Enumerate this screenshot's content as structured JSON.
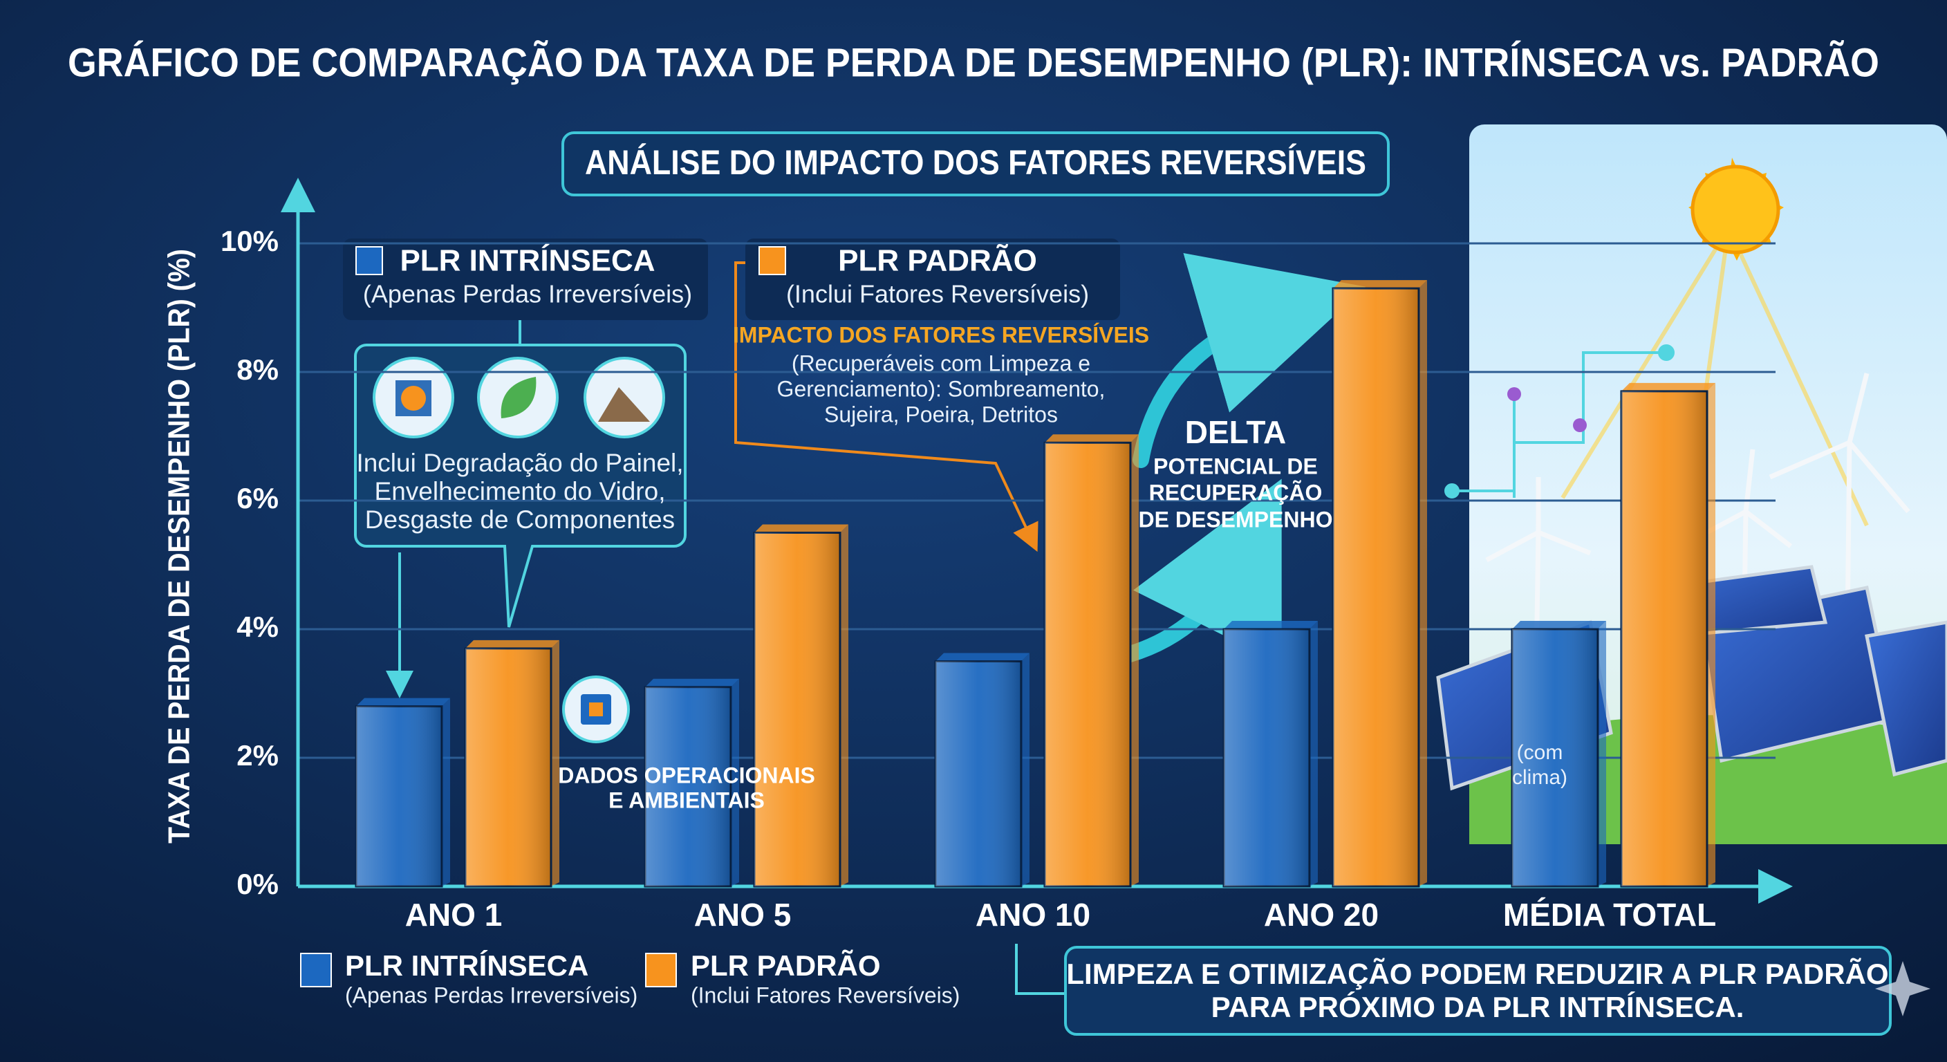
{
  "chart_data": {
    "type": "bar",
    "title": "GRÁFICO DE COMPARAÇÃO DA TAXA DE PERDA DE DESEMPENHO (PLR): INTRÍNSECA vs. PADRÃO",
    "subtitle": "ANÁLISE DO IMPACTO DOS FATORES REVERSÍVEIS",
    "y_label": "TAXA DE PERDA DE DESEMPENHO (PLR) (%)",
    "categories": [
      "ANO 1",
      "ANO 5",
      "ANO 10",
      "ANO 20",
      "MÉDIA TOTAL"
    ],
    "series": [
      {
        "name": "PLR INTRÍNSECA",
        "legend_note": "(Apenas Perdas Irreversíveis)",
        "color": "#1c68c0",
        "values": [
          2.8,
          3.1,
          3.5,
          4.0,
          4.0
        ]
      },
      {
        "name": "PLR PADRÃO",
        "legend_note": "(Inclui Fatores Reversíveis)",
        "color": "#f7931e",
        "values": [
          3.7,
          5.5,
          6.9,
          9.3,
          7.7
        ]
      }
    ],
    "ylim": [
      0,
      10
    ],
    "yticks": [
      {
        "value": 0,
        "label": "0%"
      },
      {
        "value": 2,
        "label": "2%"
      },
      {
        "value": 4,
        "label": "4%"
      },
      {
        "value": 6,
        "label": "6%"
      },
      {
        "value": 8,
        "label": "8%"
      },
      {
        "value": 10,
        "label": "10%"
      }
    ],
    "grid": true,
    "annotations": {
      "intrinsic_note": [
        "Inclui Degradação do Painel,",
        "Envelhecimento do Vidro,",
        "Desgaste de Componentes"
      ],
      "reversible_title": "IMPACTO DOS FATORES REVERSÍVEIS",
      "reversible_note": [
        "(Recuperáveis com Limpeza e",
        "Gerenciamento): Sombreamento,",
        "Sujeira, Poeira, Detritos"
      ],
      "data_note": [
        "DADOS OPERACIONAIS",
        "E AMBIENTAIS"
      ],
      "delta_title": "DELTA",
      "delta_note": [
        "POTENCIAL DE",
        "RECUPERAÇÃO",
        "DE DESEMPENHO"
      ],
      "climate_note": [
        "(com",
        "clima)"
      ],
      "conclusion": [
        "LIMPEZA E OTIMIZAÇÃO PODEM REDUZIR A PLR PADRÃO",
        "PARA PRÓXIMO DA PLR INTRÍNSECA."
      ]
    }
  }
}
